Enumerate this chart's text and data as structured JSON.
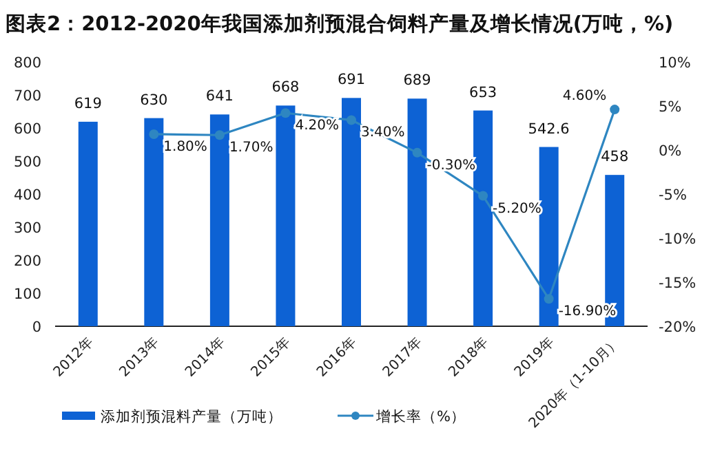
{
  "chart_data": {
    "type": "bar",
    "title": "图表2：2012-2020年我国添加剂预混合饲料产量及增长情况(万吨，%)",
    "categories": [
      "2012年",
      "2013年",
      "2014年",
      "2015年",
      "2016年",
      "2017年",
      "2018年",
      "2019年",
      "2020年（1-10月）"
    ],
    "series": [
      {
        "name": "添加剂预混料产量（万吨）",
        "color": "#0d62d4",
        "values": [
          619,
          630,
          641,
          668,
          691,
          689,
          653,
          542.6,
          458
        ],
        "value_labels": [
          "619",
          "630",
          "641",
          "668",
          "691",
          "689",
          "653",
          "542.6",
          "458"
        ]
      },
      {
        "name": "增长率（%）",
        "type": "line",
        "axis": "y2",
        "color": "#2e86c1",
        "marker": "circle",
        "values": [
          null,
          1.8,
          1.7,
          4.2,
          3.4,
          -0.3,
          -5.2,
          -16.9,
          4.6
        ],
        "value_labels": [
          null,
          "1.80%",
          "1.70%",
          "4.20%",
          "3.40%",
          "-0.30%",
          "-5.20%",
          "-16.90%",
          "4.60%"
        ]
      }
    ],
    "ylim": [
      0,
      800
    ],
    "yticks": [
      0,
      100,
      200,
      300,
      400,
      500,
      600,
      700,
      800
    ],
    "y2lim": [
      -20,
      10
    ],
    "y2ticks": [
      {
        "value": -20,
        "label": "-20%"
      },
      {
        "value": -15,
        "label": "-15%"
      },
      {
        "value": -10,
        "label": "-10%"
      },
      {
        "value": -5,
        "label": "-5%"
      },
      {
        "value": 0,
        "label": "0%"
      },
      {
        "value": 5,
        "label": "5%"
      },
      {
        "value": 10,
        "label": "10%"
      }
    ],
    "grid": false,
    "legend": "bottom"
  }
}
